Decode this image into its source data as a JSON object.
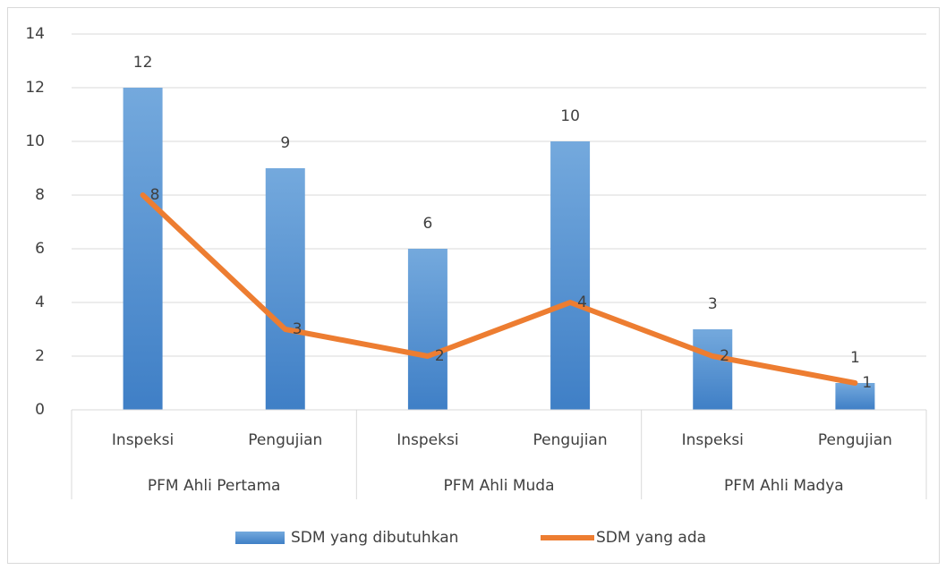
{
  "chart_data": {
    "type": "bar",
    "groups": [
      {
        "name": "PFM Ahli Pertama",
        "categories": [
          "Inspeksi",
          "Pengujian"
        ]
      },
      {
        "name": "PFM Ahli Muda",
        "categories": [
          "Inspeksi",
          "Pengujian"
        ]
      },
      {
        "name": "PFM Ahli Madya",
        "categories": [
          "Inspeksi",
          "Pengujian"
        ]
      }
    ],
    "series": [
      {
        "name": "SDM yang dibutuhkan",
        "type": "bar",
        "color": "#5b9bd5",
        "values": [
          12,
          9,
          6,
          10,
          3,
          1
        ]
      },
      {
        "name": "SDM yang ada",
        "type": "line",
        "color": "#ed7d31",
        "values": [
          8,
          3,
          2,
          4,
          2,
          1
        ]
      }
    ],
    "ylim": [
      0,
      14
    ],
    "yticks": [
      0,
      2,
      4,
      6,
      8,
      10,
      12,
      14
    ],
    "grid": true,
    "data_labels": true,
    "legend": "bottom"
  }
}
